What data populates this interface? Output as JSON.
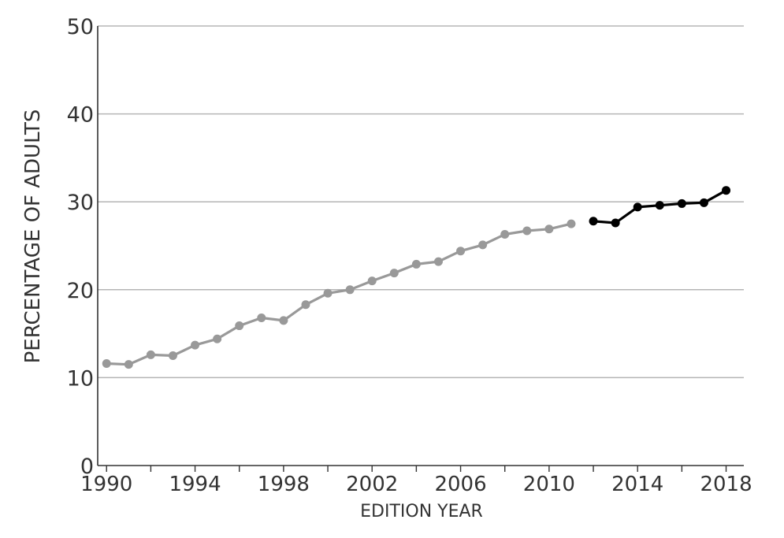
{
  "chart_data": {
    "type": "line",
    "title": "",
    "xlabel": "EDITION YEAR",
    "ylabel": "PERCENTAGE OF ADULTS",
    "xlim": [
      1989.6,
      2018.8
    ],
    "ylim": [
      0,
      50
    ],
    "x_ticks": [
      1990,
      1994,
      1998,
      2002,
      2006,
      2010,
      2014,
      2018
    ],
    "y_ticks": [
      0,
      10,
      20,
      30,
      40,
      50
    ],
    "grid": "horizontal",
    "series": [
      {
        "color": "#999999",
        "points": [
          {
            "x": 1990,
            "y": 11.6
          },
          {
            "x": 1991,
            "y": 11.5
          },
          {
            "x": 1992,
            "y": 12.6
          },
          {
            "x": 1993,
            "y": 12.5
          },
          {
            "x": 1994,
            "y": 13.7
          },
          {
            "x": 1995,
            "y": 14.4
          },
          {
            "x": 1996,
            "y": 15.9
          },
          {
            "x": 1997,
            "y": 16.8
          },
          {
            "x": 1998,
            "y": 16.5
          },
          {
            "x": 1999,
            "y": 18.3
          },
          {
            "x": 2000,
            "y": 19.6
          },
          {
            "x": 2001,
            "y": 20.0
          },
          {
            "x": 2002,
            "y": 21.0
          },
          {
            "x": 2003,
            "y": 21.9
          },
          {
            "x": 2004,
            "y": 22.9
          },
          {
            "x": 2005,
            "y": 23.2
          },
          {
            "x": 2006,
            "y": 24.4
          },
          {
            "x": 2007,
            "y": 25.1
          },
          {
            "x": 2008,
            "y": 26.3
          },
          {
            "x": 2009,
            "y": 26.7
          },
          {
            "x": 2010,
            "y": 26.9
          },
          {
            "x": 2011,
            "y": 27.5
          }
        ]
      },
      {
        "color": "#000000",
        "points": [
          {
            "x": 2012,
            "y": 27.8
          },
          {
            "x": 2013,
            "y": 27.6
          },
          {
            "x": 2014,
            "y": 29.4
          },
          {
            "x": 2015,
            "y": 29.6
          },
          {
            "x": 2016,
            "y": 29.8
          },
          {
            "x": 2017,
            "y": 29.9
          },
          {
            "x": 2018,
            "y": 31.3
          }
        ]
      }
    ]
  }
}
